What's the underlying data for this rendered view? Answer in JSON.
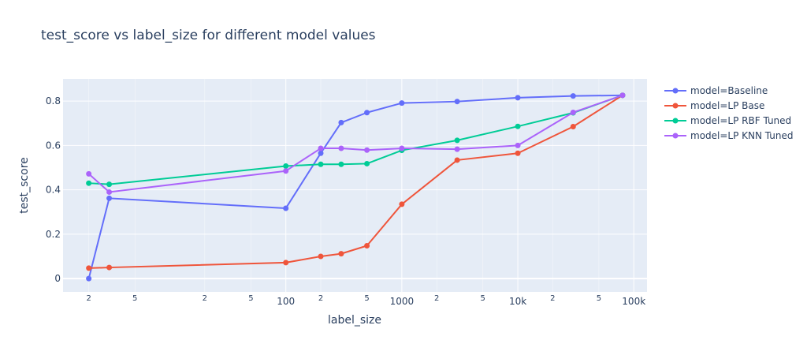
{
  "chart_data": {
    "type": "line",
    "title": "test_score vs label_size for different model values",
    "xlabel": "label_size",
    "ylabel": "test_score",
    "x_scale": "log",
    "x_range": [
      1.2,
      130000
    ],
    "ylim": [
      -0.06,
      0.9
    ],
    "y_ticks": [
      0,
      0.2,
      0.4,
      0.6,
      0.8
    ],
    "y_tick_labels": [
      "0",
      "0.2",
      "0.4",
      "0.6",
      "0.8"
    ],
    "x_major_ticks": [
      100,
      1000,
      10000,
      100000
    ],
    "x_major_tick_labels": [
      "100",
      "1000",
      "10k",
      "100k"
    ],
    "x_minor_ticks": [
      2,
      5,
      20,
      50,
      200,
      500,
      2000,
      5000,
      20000,
      50000
    ],
    "x_minor_tick_labels": [
      "2",
      "5",
      "2",
      "5",
      "2",
      "5",
      "2",
      "5",
      "2",
      "5"
    ],
    "x": [
      2,
      3,
      100,
      200,
      300,
      500,
      1000,
      3000,
      10000,
      30000,
      80000
    ],
    "grid": true,
    "legend_position": "top-right",
    "series": [
      {
        "name": "model=Baseline",
        "color": "#636efa",
        "x": [
          2,
          3,
          100,
          200,
          300,
          500,
          1000,
          3000,
          10000,
          30000,
          80000
        ],
        "values": [
          0.0,
          0.362,
          0.317,
          0.565,
          0.703,
          0.748,
          0.791,
          0.798,
          0.815,
          0.823,
          0.826
        ]
      },
      {
        "name": "model=LP Base",
        "color": "#EF553B",
        "x": [
          2,
          3,
          100,
          200,
          300,
          500,
          1000,
          3000,
          10000,
          30000,
          80000
        ],
        "values": [
          0.047,
          0.05,
          0.072,
          0.1,
          0.112,
          0.148,
          0.335,
          0.534,
          0.565,
          0.685,
          0.826
        ]
      },
      {
        "name": "model=LP RBF Tuned",
        "color": "#00cc96",
        "x": [
          2,
          3,
          100,
          200,
          300,
          500,
          1000,
          3000,
          10000,
          30000,
          80000
        ],
        "values": [
          0.43,
          0.425,
          0.507,
          0.515,
          0.515,
          0.518,
          0.578,
          0.623,
          0.686,
          0.747,
          0.826
        ]
      },
      {
        "name": "model=LP KNN Tuned",
        "color": "#ab63fa",
        "x": [
          2,
          3,
          100,
          200,
          300,
          500,
          1000,
          3000,
          10000,
          30000,
          80000
        ],
        "values": [
          0.472,
          0.39,
          0.485,
          0.587,
          0.587,
          0.579,
          0.587,
          0.583,
          0.6,
          0.749,
          0.826
        ]
      }
    ]
  }
}
